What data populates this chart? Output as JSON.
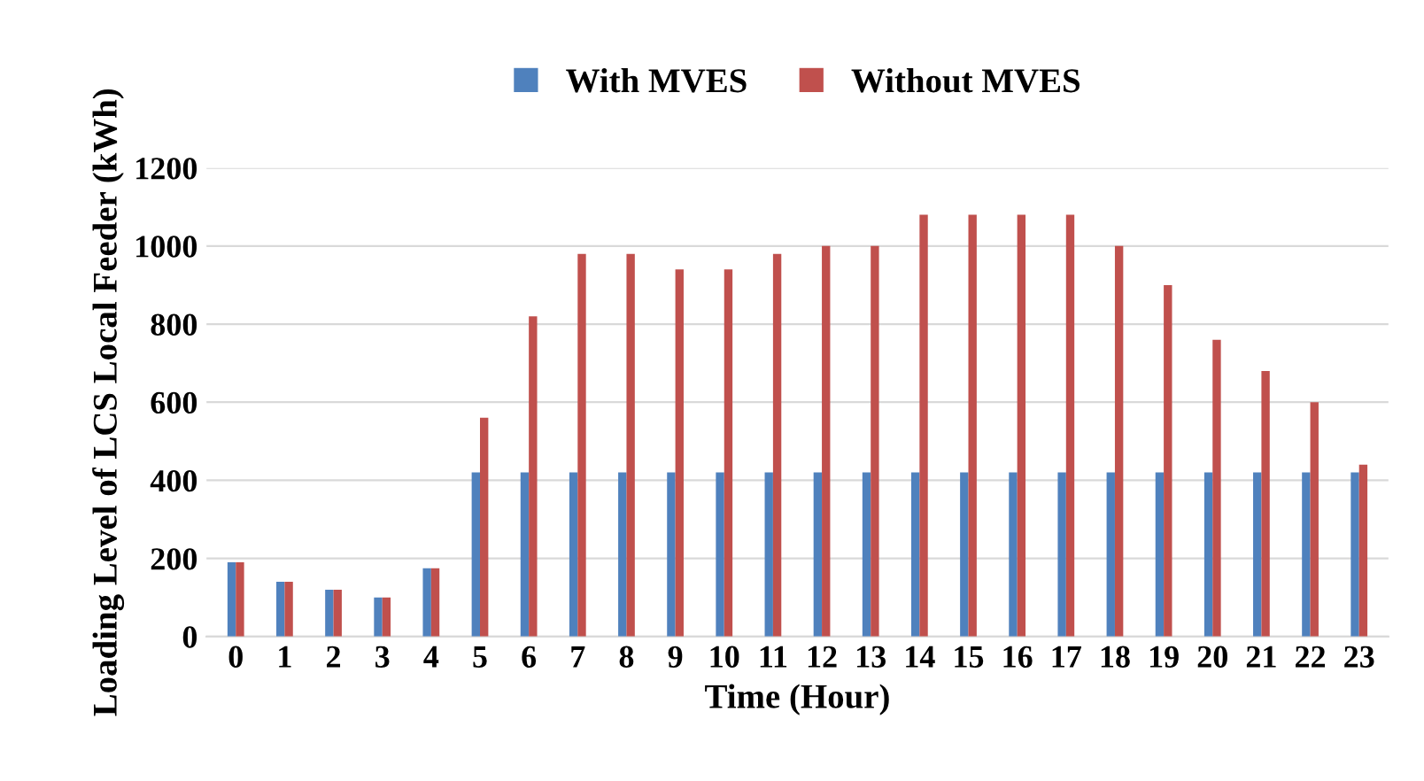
{
  "chart_data": {
    "type": "bar",
    "xlabel": "Time (Hour)",
    "ylabel": "Loading Level of LCS Local Feeder (kWh)",
    "categories": [
      "0",
      "1",
      "2",
      "3",
      "4",
      "5",
      "6",
      "7",
      "8",
      "9",
      "10",
      "11",
      "12",
      "13",
      "14",
      "15",
      "16",
      "17",
      "18",
      "19",
      "20",
      "21",
      "22",
      "23"
    ],
    "series": [
      {
        "name": "With MVES",
        "color": "#4f81bd",
        "values": [
          190,
          140,
          120,
          100,
          175,
          420,
          420,
          420,
          420,
          420,
          420,
          420,
          420,
          420,
          420,
          420,
          420,
          420,
          420,
          420,
          420,
          420,
          420,
          420
        ]
      },
      {
        "name": "Without MVES",
        "color": "#c0504d",
        "values": [
          190,
          140,
          120,
          100,
          175,
          560,
          820,
          980,
          980,
          940,
          940,
          980,
          1000,
          1000,
          1080,
          1080,
          1080,
          1080,
          1000,
          900,
          760,
          680,
          600,
          440
        ]
      }
    ],
    "ylim": [
      0,
      1200
    ],
    "yticks": [
      0,
      200,
      400,
      600,
      800,
      1000,
      1200
    ],
    "grid": "y",
    "legend": "top"
  }
}
